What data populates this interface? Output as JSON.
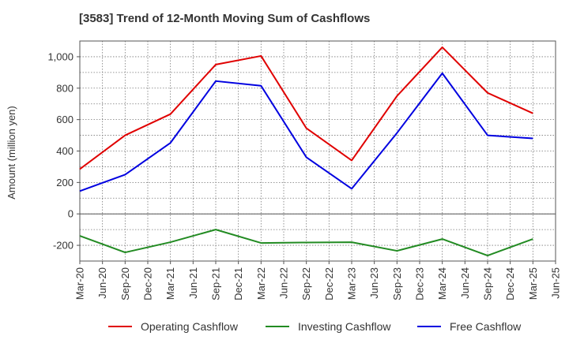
{
  "chart_data": {
    "type": "line",
    "title": "[3583]  Trend of 12-Month Moving Sum of Cashflows",
    "ylabel": "Amount (million yen)",
    "xlabel": "",
    "ylim": [
      -300,
      1100
    ],
    "yticks": [
      -200,
      0,
      200,
      400,
      600,
      800,
      "1,000"
    ],
    "ytick_values": [
      -200,
      0,
      200,
      400,
      600,
      800,
      1000
    ],
    "xtick_labels": [
      "Mar-20",
      "Jun-20",
      "Sep-20",
      "Dec-20",
      "Mar-21",
      "Jun-21",
      "Sep-21",
      "Dec-21",
      "Mar-22",
      "Jun-22",
      "Sep-22",
      "Dec-22",
      "Mar-23",
      "Jun-23",
      "Sep-23",
      "Dec-23",
      "Mar-24",
      "Jun-24",
      "Sep-24",
      "Dec-24",
      "Mar-25",
      "Jun-25"
    ],
    "x": [
      "Mar-20",
      "Sep-20",
      "Mar-21",
      "Sep-21",
      "Mar-22",
      "Sep-22",
      "Mar-23",
      "Sep-23",
      "Mar-24",
      "Sep-24",
      "Mar-25"
    ],
    "grid": true,
    "legend_position": "bottom",
    "series": [
      {
        "name": "Operating Cashflow",
        "color": "#e00000",
        "values": [
          285,
          500,
          635,
          950,
          1005,
          545,
          340,
          750,
          1060,
          770,
          640
        ]
      },
      {
        "name": "Investing Cashflow",
        "color": "#228b22",
        "values": [
          -140,
          -245,
          -180,
          -100,
          -185,
          -182,
          -180,
          -235,
          -160,
          -265,
          -160
        ]
      },
      {
        "name": "Free Cashflow",
        "color": "#0000e0",
        "values": [
          145,
          250,
          452,
          845,
          815,
          360,
          160,
          515,
          895,
          500,
          480
        ]
      }
    ]
  }
}
